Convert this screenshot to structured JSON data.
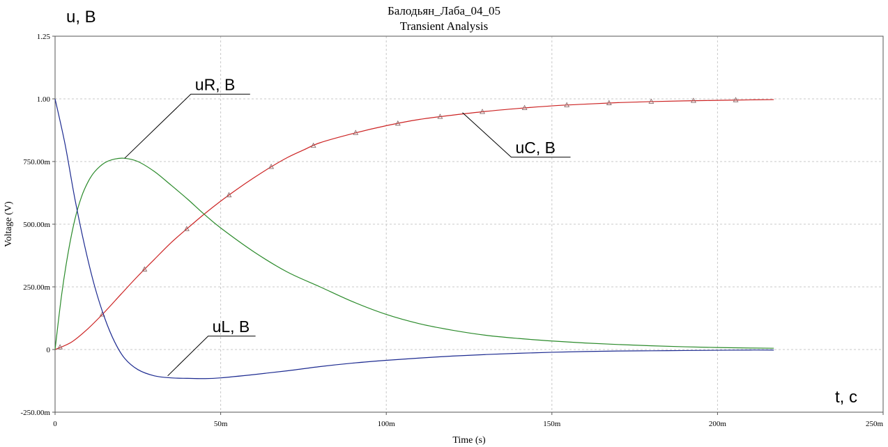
{
  "chart_data": {
    "type": "line",
    "title": "Балодьян_Лаба_04_05",
    "subtitle": "Transient Analysis",
    "xlabel": "Time (s)",
    "ylabel": "Voltage (V)",
    "x_unit_label": "t, c",
    "y_unit_label": "u, B",
    "xlim": [
      0,
      0.25
    ],
    "ylim": [
      -0.25,
      1.25
    ],
    "grid": true,
    "x_ticks": [
      0,
      0.05,
      0.1,
      0.15,
      0.2,
      0.25
    ],
    "x_tick_labels": [
      "0",
      "50m",
      "100m",
      "150m",
      "200m",
      "250m"
    ],
    "y_ticks": [
      -0.25,
      0,
      0.25,
      0.5,
      0.75,
      1.0,
      1.25
    ],
    "y_tick_labels": [
      "-250.00m",
      "0",
      "250.00m",
      "500.00m",
      "750.00m",
      "1.00",
      "1.25"
    ],
    "series": [
      {
        "name": "uC, B",
        "color": "#cc2222",
        "marker": "triangle",
        "x": [
          0,
          0.005,
          0.01,
          0.015,
          0.02,
          0.025,
          0.03,
          0.035,
          0.04,
          0.045,
          0.05,
          0.055,
          0.06,
          0.065,
          0.07,
          0.075,
          0.08,
          0.09,
          0.1,
          0.11,
          0.12,
          0.13,
          0.14,
          0.15,
          0.16,
          0.17,
          0.18,
          0.19,
          0.2,
          0.21,
          0.217
        ],
        "y": [
          0,
          0.03,
          0.084,
          0.15,
          0.222,
          0.293,
          0.36,
          0.426,
          0.484,
          0.54,
          0.592,
          0.64,
          0.685,
          0.727,
          0.765,
          0.796,
          0.825,
          0.862,
          0.893,
          0.918,
          0.935,
          0.95,
          0.962,
          0.972,
          0.979,
          0.985,
          0.989,
          0.992,
          0.994,
          0.996,
          0.997
        ]
      },
      {
        "name": "uR, B",
        "color": "#2a8a2a",
        "marker": "none",
        "x": [
          0,
          0.002,
          0.004,
          0.006,
          0.008,
          0.01,
          0.012,
          0.015,
          0.018,
          0.021,
          0.025,
          0.03,
          0.035,
          0.04,
          0.045,
          0.05,
          0.06,
          0.07,
          0.08,
          0.09,
          0.1,
          0.11,
          0.12,
          0.13,
          0.14,
          0.15,
          0.16,
          0.17,
          0.18,
          0.19,
          0.2,
          0.21,
          0.217
        ],
        "y": [
          0,
          0.22,
          0.39,
          0.52,
          0.61,
          0.67,
          0.71,
          0.745,
          0.76,
          0.763,
          0.75,
          0.71,
          0.656,
          0.6,
          0.54,
          0.485,
          0.39,
          0.31,
          0.25,
          0.19,
          0.14,
          0.103,
          0.077,
          0.057,
          0.044,
          0.034,
          0.026,
          0.02,
          0.015,
          0.011,
          0.008,
          0.006,
          0.005
        ]
      },
      {
        "name": "uL, B",
        "color": "#1c2a90",
        "marker": "none",
        "x": [
          0,
          0.003,
          0.006,
          0.009,
          0.012,
          0.015,
          0.018,
          0.021,
          0.025,
          0.03,
          0.035,
          0.04,
          0.045,
          0.05,
          0.06,
          0.07,
          0.08,
          0.09,
          0.1,
          0.11,
          0.12,
          0.13,
          0.14,
          0.15,
          0.16,
          0.17,
          0.18,
          0.19,
          0.2,
          0.21,
          0.217
        ],
        "y": [
          1.0,
          0.82,
          0.6,
          0.41,
          0.25,
          0.125,
          0.03,
          -0.035,
          -0.08,
          -0.105,
          -0.113,
          -0.115,
          -0.116,
          -0.113,
          -0.1,
          -0.085,
          -0.068,
          -0.054,
          -0.043,
          -0.034,
          -0.026,
          -0.02,
          -0.015,
          -0.011,
          -0.008,
          -0.006,
          -0.005,
          -0.004,
          -0.003,
          -0.002,
          -0.002
        ]
      }
    ],
    "annotations": [
      {
        "text": "uR, B",
        "x": 0.021,
        "y": 0.763,
        "series": "uR, B"
      },
      {
        "text": "uC, B",
        "x": 0.123,
        "y": 0.945,
        "series": "uC, B"
      },
      {
        "text": "uL, B",
        "x": 0.034,
        "y": -0.105,
        "series": "uL, B"
      }
    ]
  }
}
